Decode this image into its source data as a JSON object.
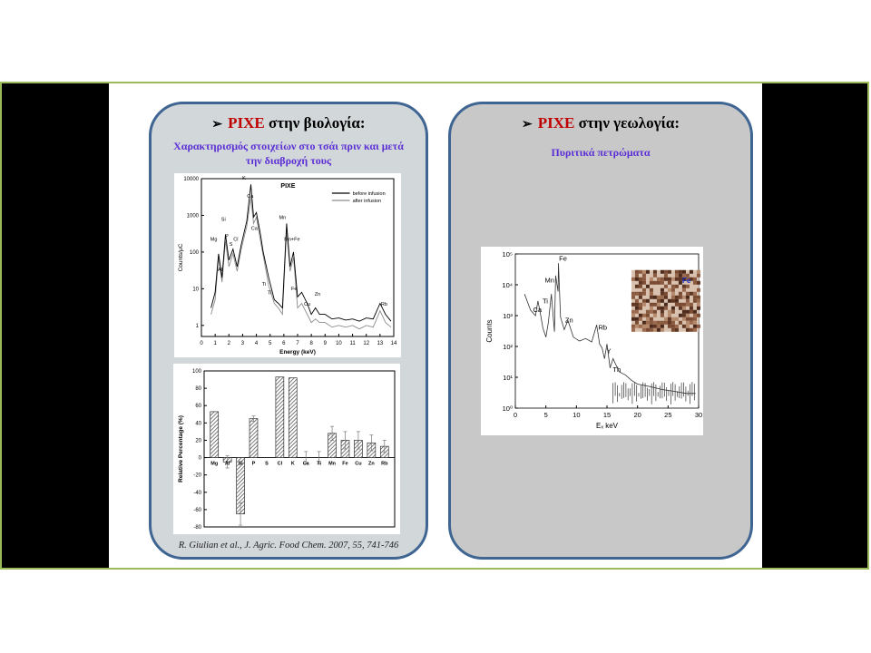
{
  "left_panel": {
    "arrow": "➢",
    "title_red": "PIXE",
    "title_rest": "στην βιολογία:",
    "subtitle_line1": "Χαρακτηρισμός στοιχείων στο τσάι πριν και μετά",
    "subtitle_line2": "την διαβροχή τους",
    "citation": "R. Giulian et al., J. Agric. Food Chem. 2007, 55, 741-746"
  },
  "right_panel": {
    "arrow": "➢",
    "title_red": "PIXE",
    "title_rest": "στην γεωλογία:",
    "subtitle": "Πυριτικά πετρώματα"
  },
  "chart_data": [
    {
      "type": "line",
      "title": "PIXE",
      "xlabel": "Energy (keV)",
      "ylabel": "Counts/μC",
      "xlim": [
        0,
        14
      ],
      "ylim": [
        0.5,
        10000
      ],
      "yscale": "log",
      "x_ticks": [
        "0",
        "1",
        "2",
        "3",
        "4",
        "5",
        "6",
        "7",
        "8",
        "9",
        "10",
        "11",
        "12",
        "13",
        "14"
      ],
      "y_ticks": [
        "1",
        "10",
        "100",
        "1000",
        "10000"
      ],
      "legend": [
        "before infusion",
        "after infusion"
      ],
      "legend_position": "top-right",
      "peak_labels": [
        "Mg",
        "Al",
        "Si",
        "P",
        "S",
        "Cl",
        "K",
        "Ca",
        "Ca",
        "Ti",
        "Ti",
        "Mn",
        "Mn+Fe",
        "Fe",
        "Cu",
        "Zn",
        "Rb"
      ],
      "series": [
        {
          "name": "before infusion",
          "color": "#000000",
          "x": [
            0.7,
            1.0,
            1.25,
            1.5,
            1.75,
            2.0,
            2.3,
            2.6,
            2.9,
            3.3,
            3.6,
            3.8,
            4.0,
            4.3,
            4.5,
            4.9,
            5.3,
            5.6,
            5.9,
            6.2,
            6.45,
            6.7,
            7.0,
            7.3,
            7.7,
            8.0,
            8.3,
            8.6,
            9.0,
            9.5,
            10,
            10.5,
            11,
            11.5,
            12,
            12.5,
            13.0,
            13.4,
            13.8
          ],
          "y": [
            3,
            8,
            90,
            20,
            300,
            60,
            120,
            40,
            160,
            700,
            7000,
            900,
            1200,
            300,
            100,
            20,
            5,
            4,
            3,
            600,
            40,
            100,
            6,
            8,
            4,
            2,
            3,
            2,
            2,
            1.5,
            1.6,
            1.4,
            1.5,
            1.3,
            1.6,
            1.5,
            4,
            2,
            1.3
          ]
        },
        {
          "name": "after infusion",
          "color": "#8c8c8c",
          "x": [
            0.7,
            1.0,
            1.25,
            1.5,
            1.75,
            2.0,
            2.3,
            2.6,
            2.9,
            3.3,
            3.6,
            3.8,
            4.0,
            4.3,
            4.5,
            4.9,
            5.3,
            5.6,
            5.9,
            6.2,
            6.45,
            6.7,
            7.0,
            7.3,
            7.7,
            8.0,
            8.3,
            8.6,
            9.0,
            9.5,
            10,
            10.5,
            11,
            11.5,
            12,
            12.5,
            13.0,
            13.4,
            13.8
          ],
          "y": [
            2,
            5,
            70,
            15,
            200,
            40,
            90,
            30,
            120,
            500,
            3000,
            600,
            900,
            200,
            80,
            12,
            4,
            3,
            2,
            400,
            30,
            70,
            3,
            4,
            2,
            1.2,
            1.5,
            1.2,
            1.2,
            0.9,
            1.0,
            0.9,
            1.0,
            0.8,
            1.0,
            0.9,
            2.5,
            1.2,
            0.9
          ]
        }
      ]
    },
    {
      "type": "bar",
      "categories": [
        "Mg",
        "Al",
        "Si",
        "P",
        "S",
        "Cl",
        "K",
        "Ca",
        "Ti",
        "Mn",
        "Fe",
        "Cu",
        "Zn",
        "Rb"
      ],
      "values": [
        53,
        -5,
        -65,
        45,
        0,
        93,
        92,
        0,
        0,
        28,
        20,
        20,
        17,
        13
      ],
      "errors": [
        0,
        7,
        13,
        3,
        0,
        0,
        0,
        7,
        7,
        8,
        10,
        10,
        9,
        7
      ],
      "ylabel": "Relative Percentage (%)",
      "ylim": [
        -80,
        100
      ],
      "y_ticks": [
        "100",
        "80",
        "60",
        "40",
        "20",
        "0",
        "-20",
        "-40",
        "-60",
        "-80"
      ]
    },
    {
      "type": "line",
      "xlabel": "Eₓ keV",
      "ylabel": "Counts",
      "xlim": [
        0,
        30
      ],
      "ylim": [
        1,
        100000
      ],
      "yscale": "log",
      "x_ticks": [
        "0",
        "5",
        "10",
        "15",
        "20",
        "25",
        "30"
      ],
      "y_ticks": [
        "10⁰",
        "10¹",
        "10²",
        "10³",
        "10⁴",
        "10⁵"
      ],
      "peak_labels": [
        "Fe",
        "Mn",
        "Ti",
        "Ca",
        "Zn",
        "Rb",
        "Y",
        "Th"
      ],
      "inset_label": "Fe",
      "series": [
        {
          "color": "#333333",
          "x": [
            1.5,
            2.5,
            3.3,
            3.7,
            4.2,
            4.5,
            5.0,
            5.4,
            5.9,
            6.4,
            6.6,
            7.0,
            7.06,
            7.4,
            8.0,
            8.6,
            9.5,
            10.5,
            11.5,
            12.5,
            13.3,
            13.8,
            14.2,
            14.6,
            15.0,
            15.5,
            16,
            17,
            18,
            19,
            20,
            22,
            24,
            26,
            28,
            29.5
          ],
          "y": [
            5000,
            1500,
            1000,
            3000,
            900,
            400,
            200,
            600,
            5000,
            300,
            20000,
            6000,
            50000,
            900,
            350,
            700,
            200,
            150,
            180,
            140,
            500,
            120,
            90,
            40,
            120,
            20,
            40,
            15,
            12,
            8,
            6,
            5,
            4,
            3.5,
            3,
            3
          ]
        }
      ]
    }
  ]
}
